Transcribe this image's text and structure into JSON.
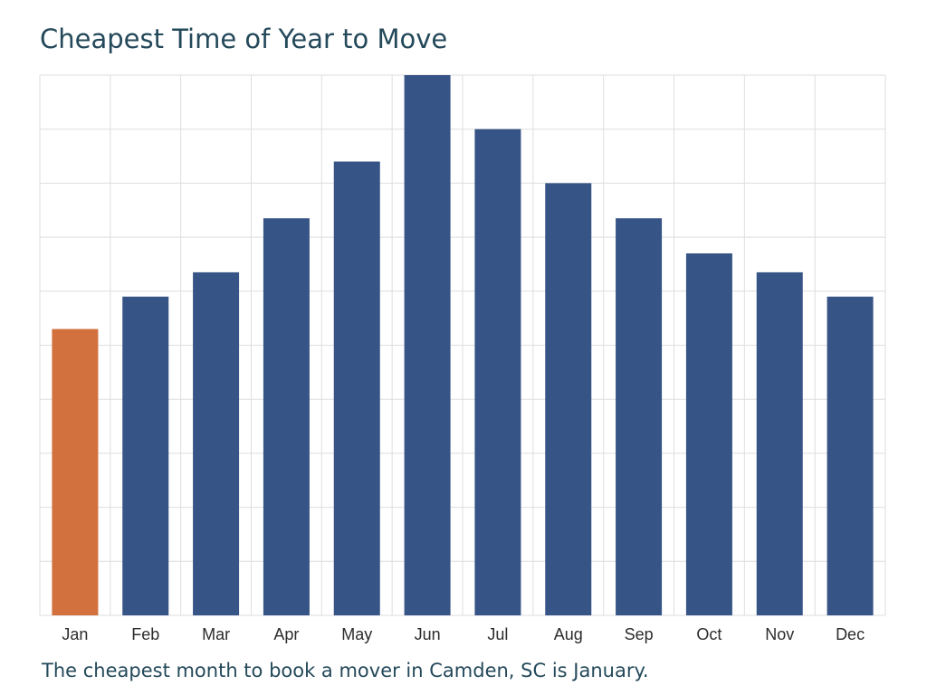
{
  "chart_data": {
    "type": "bar",
    "title": "Cheapest Time of Year to Move",
    "caption": "The cheapest month to book a mover in Camden, SC is January.",
    "categories": [
      "Jan",
      "Feb",
      "Mar",
      "Apr",
      "May",
      "Jun",
      "Jul",
      "Aug",
      "Sep",
      "Oct",
      "Nov",
      "Dec"
    ],
    "values": [
      53,
      59,
      63.5,
      73.5,
      84,
      100,
      90,
      80,
      73.5,
      67,
      63.5,
      59
    ],
    "highlight_index": 0,
    "ylim": [
      0,
      100
    ],
    "grid": true,
    "y_gridlines": 10,
    "y_tick_labels_shown": false,
    "xlabel": "",
    "ylabel": "",
    "colors": {
      "bar": "#375486",
      "highlight": "#d2703e",
      "grid": "#dedede",
      "axis_text": "#2c2c2c",
      "title_text": "#24495a"
    }
  }
}
